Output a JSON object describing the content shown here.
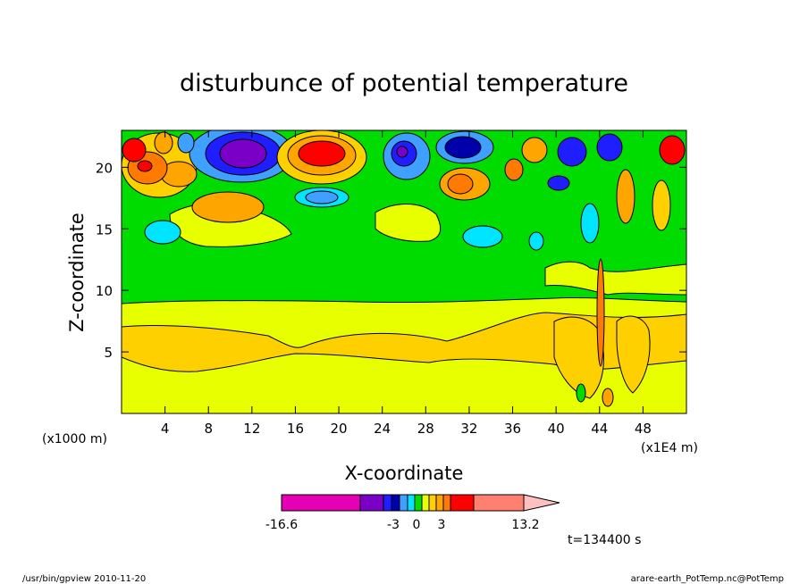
{
  "chart_data": {
    "type": "heatmap",
    "title": "disturbunce of potential temperature",
    "xlabel": "X-coordinate",
    "ylabel": "Z-coordinate",
    "x_unit_left": "(x1000 m)",
    "x_unit_right": "(x1E4 m)",
    "xlim": [
      0,
      52
    ],
    "ylim": [
      0,
      23
    ],
    "x_ticks": [
      "4",
      "8",
      "12",
      "16",
      "20",
      "24",
      "28",
      "32",
      "36",
      "40",
      "44",
      "48"
    ],
    "y_ticks": [
      "5",
      "10",
      "15",
      "20"
    ],
    "time_label": "t=134400 s",
    "colorbar": {
      "min_label": "-16.6",
      "max_label": "13.2",
      "mid_labels": [
        "-3",
        "0",
        "3"
      ],
      "colors": [
        "#e600b4",
        "#7a00c8",
        "#1e1eff",
        "#0000aa",
        "#3fa0ff",
        "#00e5ff",
        "#00dc00",
        "#e8ff00",
        "#ffd000",
        "#ffa500",
        "#ff7a00",
        "#ff0000",
        "#ff8070",
        "#ffc0c0"
      ]
    },
    "layers": [
      {
        "z_range": [
          0,
          4
        ],
        "value_range": [
          0,
          1
        ],
        "color": "#e8ff00"
      },
      {
        "z_range": [
          4,
          7
        ],
        "value_range": [
          1,
          2
        ],
        "color": "#ffd000"
      },
      {
        "z_range": [
          7,
          9
        ],
        "value_range": [
          0,
          1
        ],
        "color": "#e8ff00"
      },
      {
        "z_range": [
          9,
          16
        ],
        "value_range": [
          -0.5,
          0.5
        ],
        "color": "#00dc00"
      },
      {
        "z_range": [
          16,
          23
        ],
        "value_range": [
          -16.6,
          13.2
        ],
        "color": "mixed"
      }
    ]
  },
  "footer": {
    "left": "/usr/bin/gpview   2010-11-20",
    "right": "arare-earth_PotTemp.nc@PotTemp"
  }
}
